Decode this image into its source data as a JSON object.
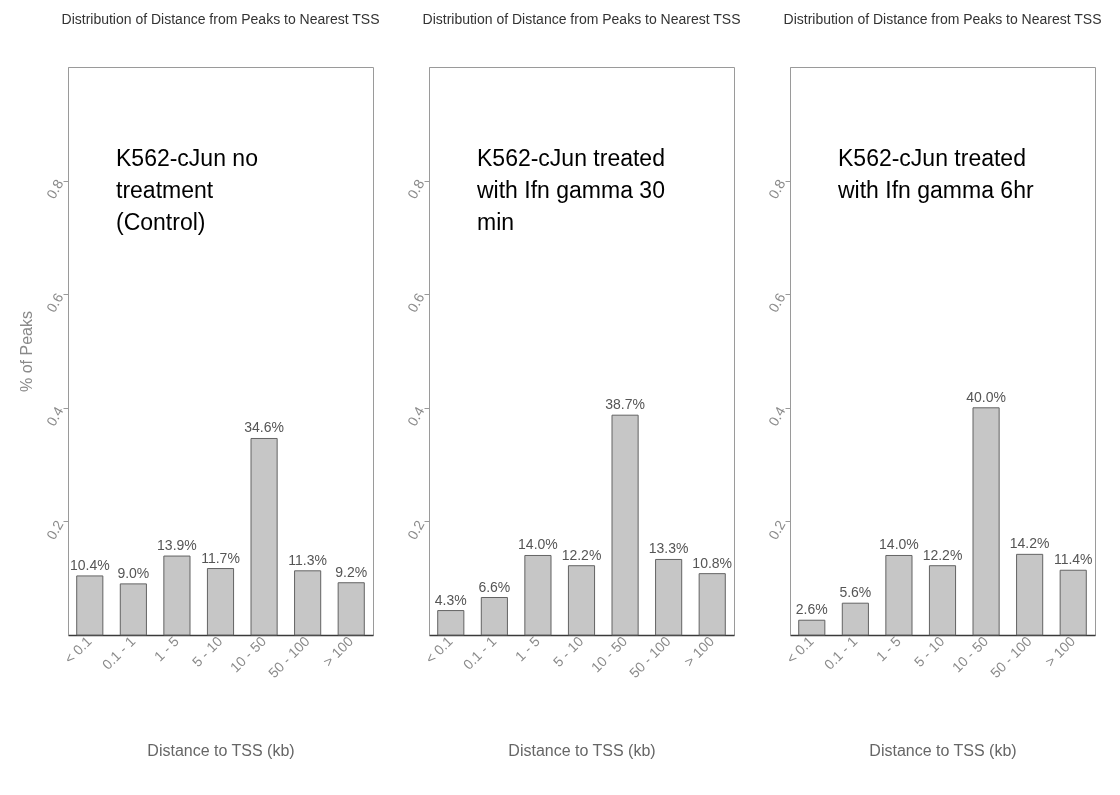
{
  "chart_data": [
    {
      "type": "bar",
      "title": "Distribution of Distance from Peaks to Nearest TSS",
      "xlabel": "Distance to TSS (kb)",
      "ylabel": "% of Peaks",
      "categories": [
        "< 0.1",
        "0.1 - 1",
        "1 - 5",
        "5 - 10",
        "10 - 50",
        "50 - 100",
        "> 100"
      ],
      "values": [
        0.104,
        0.09,
        0.139,
        0.117,
        0.346,
        0.113,
        0.092
      ],
      "value_labels": [
        "10.4%",
        "9.0%",
        "13.9%",
        "11.7%",
        "34.6%",
        "11.3%",
        "9.2%"
      ],
      "color": "#c6c6c6",
      "ylim": [
        0,
        1
      ],
      "yticks": [
        0.2,
        0.4,
        0.6,
        0.8
      ],
      "annotations": [
        "K562-cJun no\ntreatment\n (Control)"
      ]
    },
    {
      "type": "bar",
      "title": "Distribution of Distance from Peaks to Nearest TSS",
      "xlabel": "Distance to TSS (kb)",
      "categories": [
        "< 0.1",
        "0.1 - 1",
        "1 - 5",
        "5 - 10",
        "10 - 50",
        "50 - 100",
        "> 100"
      ],
      "values": [
        0.043,
        0.066,
        0.14,
        0.122,
        0.387,
        0.133,
        0.108
      ],
      "value_labels": [
        "4.3%",
        "6.6%",
        "14.0%",
        "12.2%",
        "38.7%",
        "13.3%",
        "10.8%"
      ],
      "color": "#c6c6c6",
      "ylim": [
        0,
        1
      ],
      "yticks": [
        0.2,
        0.4,
        0.6,
        0.8
      ],
      "annotations": [
        "K562-cJun treated\nwith Ifn gamma 30\nmin"
      ]
    },
    {
      "type": "bar",
      "title": "Distribution of Distance from Peaks to Nearest TSS",
      "xlabel": "Distance to TSS (kb)",
      "categories": [
        "< 0.1",
        "0.1 - 1",
        "1 - 5",
        "5 - 10",
        "10 - 50",
        "50 - 100",
        "> 100"
      ],
      "values": [
        0.026,
        0.056,
        0.14,
        0.122,
        0.4,
        0.142,
        0.114
      ],
      "value_labels": [
        "2.6%",
        "5.6%",
        "14.0%",
        "12.2%",
        "40.0%",
        "14.2%",
        "11.4%"
      ],
      "color": "#c6c6c6",
      "ylim": [
        0,
        1
      ],
      "yticks": [
        0.2,
        0.4,
        0.6,
        0.8
      ],
      "annotations": [
        "K562-cJun treated\nwith Ifn gamma 6hr"
      ]
    }
  ]
}
